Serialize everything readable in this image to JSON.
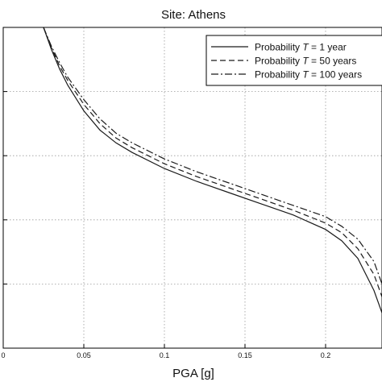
{
  "chart_data": {
    "type": "line",
    "title": "Site: Athens",
    "xlabel": "PGA [g]",
    "ylabel": "",
    "xlim": [
      0,
      0.235
    ],
    "ylim": [
      0,
      1
    ],
    "x_ticks": [
      0,
      0.05,
      0.1,
      0.15,
      0.2
    ],
    "x_tick_labels": [
      "0",
      "0.05",
      "0.1",
      "0.15",
      "0.2"
    ],
    "y_ticks": [
      0,
      0.2,
      0.4,
      0.6,
      0.8,
      1.0
    ],
    "grid": true,
    "legend_position": "top-right",
    "series": [
      {
        "name": "Probability T = 1 year",
        "style": "solid",
        "x": [
          0.025,
          0.03,
          0.035,
          0.04,
          0.05,
          0.06,
          0.07,
          0.08,
          0.1,
          0.12,
          0.14,
          0.16,
          0.18,
          0.2,
          0.21,
          0.22,
          0.23,
          0.235
        ],
        "y": [
          1.0,
          0.93,
          0.87,
          0.82,
          0.74,
          0.68,
          0.64,
          0.61,
          0.56,
          0.52,
          0.485,
          0.45,
          0.415,
          0.37,
          0.335,
          0.28,
          0.18,
          0.11
        ]
      },
      {
        "name": "Probability T = 50 years",
        "style": "dashed",
        "x": [
          0.025,
          0.03,
          0.035,
          0.04,
          0.05,
          0.06,
          0.07,
          0.08,
          0.1,
          0.12,
          0.14,
          0.16,
          0.18,
          0.2,
          0.21,
          0.22,
          0.23,
          0.235
        ],
        "y": [
          1.0,
          0.935,
          0.88,
          0.835,
          0.76,
          0.7,
          0.655,
          0.625,
          0.575,
          0.535,
          0.5,
          0.465,
          0.43,
          0.39,
          0.36,
          0.31,
          0.23,
          0.16
        ]
      },
      {
        "name": "Probability T = 100 years",
        "style": "dashdot",
        "x": [
          0.025,
          0.03,
          0.035,
          0.04,
          0.05,
          0.06,
          0.07,
          0.08,
          0.1,
          0.12,
          0.14,
          0.16,
          0.18,
          0.2,
          0.21,
          0.22,
          0.23,
          0.235
        ],
        "y": [
          1.0,
          0.94,
          0.89,
          0.845,
          0.775,
          0.715,
          0.67,
          0.64,
          0.59,
          0.55,
          0.515,
          0.48,
          0.445,
          0.41,
          0.38,
          0.34,
          0.27,
          0.2
        ]
      }
    ],
    "legend": [
      {
        "prefix": "Probability ",
        "var": "T",
        "suffix": " = 1 year",
        "style": "solid"
      },
      {
        "prefix": "Probability ",
        "var": "T",
        "suffix": " = 50 years",
        "style": "dashed"
      },
      {
        "prefix": "Probability ",
        "var": "T",
        "suffix": " = 100 years",
        "style": "dashdot"
      }
    ],
    "colors": {
      "line": "#1a1a1a",
      "grid": "#9a9a9a",
      "axis": "#000000",
      "background": "#ffffff"
    }
  }
}
